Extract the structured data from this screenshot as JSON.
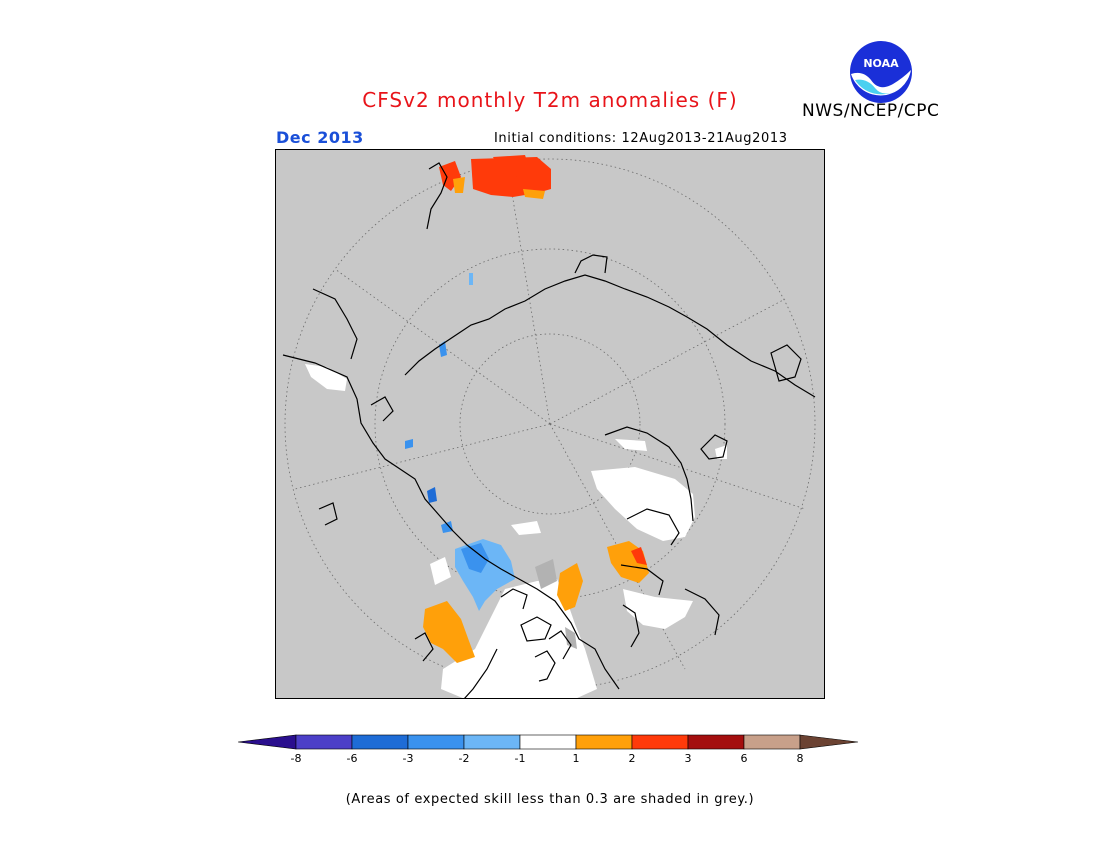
{
  "title": "CFSv2 monthly T2m anomalies (F)",
  "agency": "NWS/NCEP/CPC",
  "logo_text": "NOAA",
  "month": "Dec 2013",
  "initial_conditions": "Initial conditions: 12Aug2013-21Aug2013",
  "note": "(Areas of expected skill less than 0.3 are shaded in grey.)",
  "colorbar": {
    "colors": [
      "#2a0f8e",
      "#4c3fc8",
      "#1e6cd6",
      "#3a92ee",
      "#6cb6f6",
      "#ffffff",
      "#ffa00a",
      "#ff3a0a",
      "#a40e0e",
      "#c8a08a",
      "#6b4232"
    ],
    "labels": [
      "-8",
      "-6",
      "-3",
      "-2",
      "-1",
      "1",
      "2",
      "3",
      "6",
      "8"
    ]
  },
  "colors": {
    "map_background": "#c8c8c8",
    "title": "#e8141a",
    "month": "#1a4fd8"
  }
}
